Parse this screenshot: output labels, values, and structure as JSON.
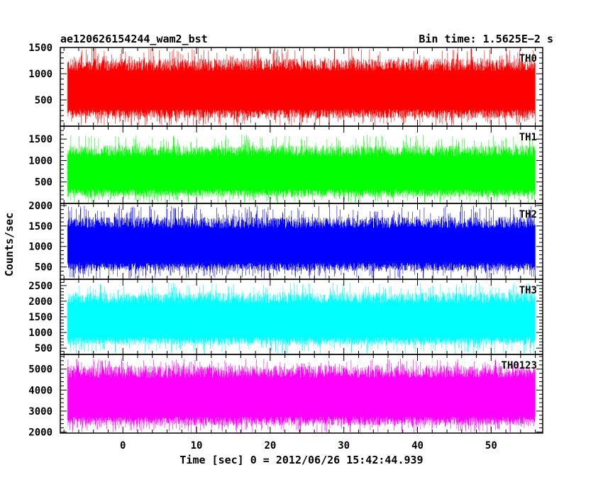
{
  "chart_data": {
    "type": "line",
    "title_left": "ae120626154244_wam2_bst",
    "title_right": "Bin time: 1.5625E−2 s",
    "xlabel": "Time [sec] 0 = 2012/06/26 15:42:44.939",
    "ylabel": "Counts/sec",
    "xlim": [
      -8.5,
      57
    ],
    "x_data_range": [
      -7.5,
      56
    ],
    "xticks": [
      0,
      10,
      20,
      30,
      40,
      50
    ],
    "xtick_labels": [
      "0",
      "10",
      "20",
      "30",
      "40",
      "50"
    ],
    "line_style": "solid",
    "grid": false,
    "panels": [
      {
        "label": "TH0",
        "color": "#ff0000",
        "ylim": [
          0,
          1500
        ],
        "yticks": [
          500,
          1000,
          1500
        ],
        "ytick_labels": [
          "500",
          "1000",
          "1500"
        ],
        "values": {
          "lower_envelope": 150,
          "upper_envelope": 1100,
          "max_peaks": 1500
        }
      },
      {
        "label": "TH1",
        "color": "#00ff00",
        "ylim": [
          0,
          1800
        ],
        "yticks": [
          500,
          1000,
          1500
        ],
        "ytick_labels": [
          "500",
          "1000",
          "1500"
        ],
        "values": {
          "lower_envelope": 150,
          "upper_envelope": 1150,
          "max_peaks": 1600
        }
      },
      {
        "label": "TH2",
        "color": "#0000ff",
        "ylim": [
          200,
          2050
        ],
        "yticks": [
          500,
          1000,
          1500,
          2000
        ],
        "ytick_labels": [
          "500",
          "1000",
          "1500",
          "2000"
        ],
        "values": {
          "lower_envelope": 400,
          "upper_envelope": 1500,
          "max_peaks": 2000
        }
      },
      {
        "label": "TH3",
        "color": "#00ffff",
        "ylim": [
          300,
          2700
        ],
        "yticks": [
          500,
          1000,
          1500,
          2000,
          2500
        ],
        "ytick_labels": [
          "500",
          "1000",
          "1500",
          "2000",
          "2500"
        ],
        "values": {
          "lower_envelope": 600,
          "upper_envelope": 2000,
          "max_peaks": 2600
        }
      },
      {
        "label": "TH0123",
        "color": "#ff00ff",
        "ylim": [
          1950,
          5700
        ],
        "yticks": [
          2000,
          3000,
          4000,
          5000
        ],
        "ytick_labels": [
          "2000",
          "3000",
          "4000",
          "5000"
        ],
        "values": {
          "lower_envelope": 2300,
          "upper_envelope": 4700,
          "max_peaks": 5500
        }
      }
    ]
  }
}
